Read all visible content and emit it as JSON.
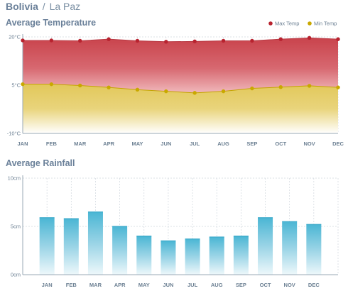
{
  "header": {
    "country": "Bolivia",
    "separator": "/",
    "city": "La Paz"
  },
  "colors": {
    "max_temp": "#b8232f",
    "min_temp": "#c9a800",
    "max_fill": "#c9434c",
    "min_fill": "#e2c85a",
    "rain_bar": "#4bb6d4",
    "grid": "#cfd6dd",
    "axis": "#9aa8b5"
  },
  "chart_data": [
    {
      "type": "area",
      "title": "Average Temperature",
      "categories": [
        "JAN",
        "FEB",
        "MAR",
        "APR",
        "MAY",
        "JUN",
        "JUL",
        "AUG",
        "SEP",
        "OCT",
        "NOV",
        "DEC"
      ],
      "series": [
        {
          "name": "Max Temp",
          "values": [
            18.9,
            18.9,
            18.8,
            19.3,
            18.8,
            18.5,
            18.6,
            18.8,
            18.8,
            19.3,
            19.7,
            19.3
          ]
        },
        {
          "name": "Min Temp",
          "values": [
            5.3,
            5.3,
            4.9,
            4.3,
            3.6,
            3.1,
            2.6,
            3.1,
            4.0,
            4.4,
            4.8,
            4.3
          ]
        }
      ],
      "yticks": [
        "20°C",
        "5°C",
        "-10°C"
      ],
      "ytick_values": [
        20,
        5,
        -10
      ],
      "ylim": [
        -10,
        20
      ],
      "grid": true,
      "legend_position": "top-right"
    },
    {
      "type": "bar",
      "title": "Average Rainfall",
      "categories": [
        "JAN",
        "FEB",
        "MAR",
        "APR",
        "MAY",
        "JUN",
        "JUL",
        "AUG",
        "SEP",
        "OCT",
        "NOV",
        "DEC"
      ],
      "values": [
        5.9,
        5.8,
        6.5,
        5.0,
        4.0,
        3.5,
        3.7,
        3.9,
        4.0,
        5.9,
        5.5,
        5.2
      ],
      "yticks": [
        "10cm",
        "5cm",
        "0cm"
      ],
      "ytick_values": [
        10,
        5,
        0
      ],
      "ylim": [
        0,
        10
      ],
      "grid": true
    }
  ]
}
